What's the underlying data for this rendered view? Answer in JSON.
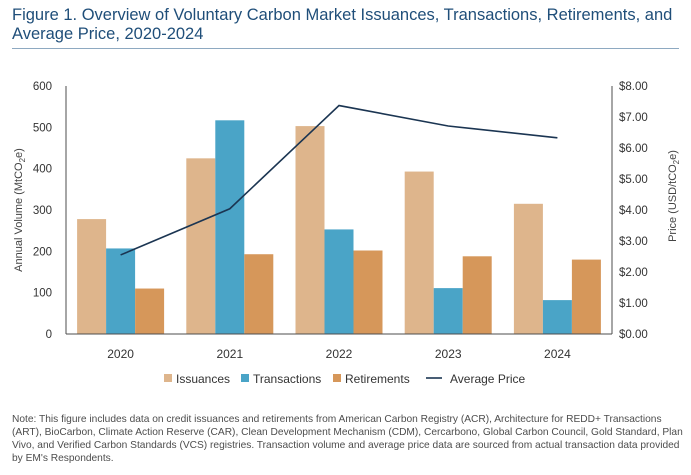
{
  "title": "Figure 1. Overview of Voluntary Carbon Market Issuances, Transactions, Retirements, and Average Price, 2020-2024",
  "note": "Note: This figure includes data on credit issuances and retirements from American Carbon Registry (ACR), Architecture for REDD+ Transactions (ART), BioCarbon, Climate Action Reserve (CAR), Clean Development Mechanism (CDM), Cercarbono, Global Carbon Council, Gold Standard, Plan Vivo, and Verified Carbon Standards (VCS) registries. Transaction volume and average price data are sourced from actual transaction data provided by EM's Respondents.",
  "chart_data": {
    "type": "bar",
    "categories": [
      "2020",
      "2021",
      "2022",
      "2023",
      "2024"
    ],
    "series": [
      {
        "name": "Issuances",
        "kind": "bar",
        "axis": "left",
        "color": "#deb58c",
        "values": [
          278,
          425,
          503,
          393,
          315
        ]
      },
      {
        "name": "Transactions",
        "kind": "bar",
        "axis": "left",
        "color": "#4aa4c7",
        "values": [
          207,
          517,
          253,
          111,
          82
        ]
      },
      {
        "name": "Retirements",
        "kind": "bar",
        "axis": "left",
        "color": "#d6975a",
        "values": [
          110,
          193,
          202,
          188,
          180
        ]
      },
      {
        "name": "Average Price",
        "kind": "line",
        "axis": "right",
        "color": "#1b3552",
        "values": [
          2.55,
          4.04,
          7.37,
          6.71,
          6.33
        ]
      }
    ],
    "ylabel": "Annual Volume (MtCO",
    "ylabel_sub": "2",
    "ylabel_end": "e)",
    "y2label": "Price (USD/tCO",
    "y2label_sub": "2",
    "y2label_end": "e)",
    "ylim": [
      0,
      600
    ],
    "y2lim": [
      0,
      8
    ],
    "yticks": [
      "0",
      "100",
      "200",
      "300",
      "400",
      "500",
      "600"
    ],
    "y2ticks": [
      "$0.00",
      "$1.00",
      "$2.00",
      "$3.00",
      "$4.00",
      "$5.00",
      "$6.00",
      "$7.00",
      "$8.00"
    ],
    "grid": false,
    "legend_position": "bottom"
  }
}
